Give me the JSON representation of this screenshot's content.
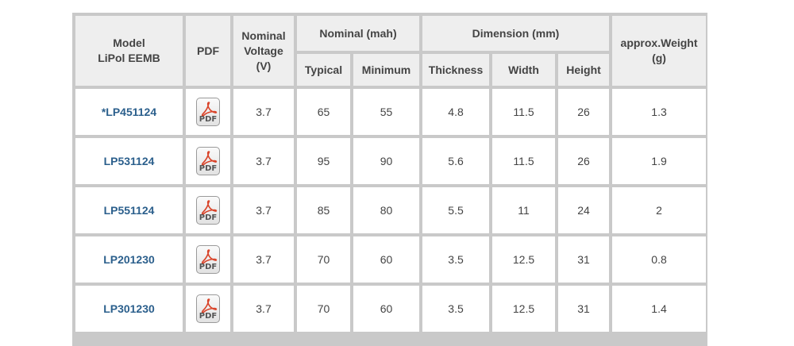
{
  "table": {
    "headers": {
      "model": [
        "Model",
        "LiPol EEMB"
      ],
      "pdf": "PDF",
      "voltage": [
        "Nominal",
        "Voltage",
        "(V)"
      ],
      "nominal_group": "Nominal (mah)",
      "typical": "Typical",
      "minimum": "Minimum",
      "dimension_group": "Dimension (mm)",
      "thickness": "Thickness",
      "width": "Width",
      "height": "Height",
      "weight": [
        "approx.Weight",
        "(g)"
      ]
    },
    "pdf_icon_label": "PDF",
    "rows": [
      {
        "model": "*LP451124",
        "voltage": "3.7",
        "typical": "65",
        "minimum": "55",
        "thickness": "4.8",
        "width": "11.5",
        "height": "26",
        "weight": "1.3"
      },
      {
        "model": "LP531124",
        "voltage": "3.7",
        "typical": "95",
        "minimum": "90",
        "thickness": "5.6",
        "width": "11.5",
        "height": "26",
        "weight": "1.9"
      },
      {
        "model": "LP551124",
        "voltage": "3.7",
        "typical": "85",
        "minimum": "80",
        "thickness": "5.5",
        "width": "11",
        "height": "24",
        "weight": "2"
      },
      {
        "model": "LP201230",
        "voltage": "3.7",
        "typical": "70",
        "minimum": "60",
        "thickness": "3.5",
        "width": "12.5",
        "height": "31",
        "weight": "0.8"
      },
      {
        "model": "LP301230",
        "voltage": "3.7",
        "typical": "70",
        "minimum": "60",
        "thickness": "3.5",
        "width": "12.5",
        "height": "31",
        "weight": "1.4"
      }
    ]
  },
  "colors": {
    "link": "#2b5f8c",
    "header_bg": "#eeeeee",
    "grid": "#c9c9c9",
    "pdf_accent": "#d9442a"
  },
  "icons": {
    "pdf": "pdf-file-icon"
  }
}
